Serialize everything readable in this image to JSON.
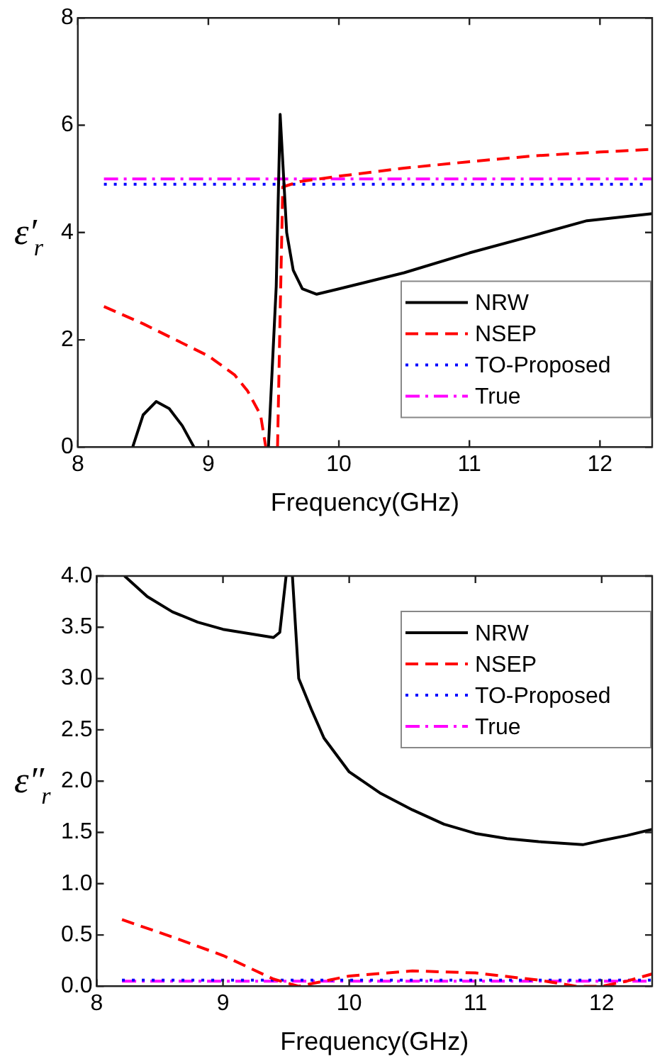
{
  "chart_data": [
    {
      "type": "line",
      "ylabel": "ε′$_{r}$",
      "xlabel": "Frequency(GHz)",
      "xlim": [
        8,
        12.4
      ],
      "xticks": [
        8,
        9,
        10,
        11,
        12
      ],
      "ylim": [
        0,
        8
      ],
      "yticks": [
        0,
        2,
        4,
        6,
        8
      ],
      "grid": false,
      "legend": "bottom right",
      "marker": "none",
      "series": [
        {
          "name": "NRW",
          "color": "#000000",
          "line_style": "solid",
          "x": [
            8.42,
            8.5,
            8.6,
            8.7,
            8.8,
            8.89,
            9.2,
            9.46,
            9.52,
            9.55,
            9.6,
            9.65,
            9.72,
            9.83,
            10,
            10.5,
            11,
            11.5,
            11.9,
            12.4
          ],
          "values": [
            0,
            0.6,
            0.85,
            0.72,
            0.4,
            0,
            null,
            0,
            3,
            6.2,
            4,
            3.3,
            2.95,
            2.85,
            2.95,
            3.25,
            3.62,
            3.95,
            4.22,
            4.35
          ]
        },
        {
          "name": "NSEP",
          "color": "#ff0000",
          "line_style": "dashed",
          "x": [
            8.2,
            8.5,
            9,
            9.2,
            9.3,
            9.4,
            9.44,
            9.5,
            9.53,
            9.55,
            9.57,
            9.7,
            10,
            10.5,
            11,
            11.5,
            12,
            12.4
          ],
          "values": [
            2.62,
            2.3,
            1.7,
            1.35,
            1.05,
            0.6,
            0,
            null,
            0,
            2.5,
            4.85,
            4.95,
            5.05,
            5.2,
            5.32,
            5.43,
            5.5,
            5.55
          ]
        },
        {
          "name": "TO-Proposed",
          "color": "#0000ff",
          "line_style": "dotted",
          "x": [
            8.2,
            12.35
          ],
          "values": [
            4.9,
            4.9
          ]
        },
        {
          "name": "True",
          "color": "#ff00ff",
          "line_style": "dashdot",
          "x": [
            8.2,
            12.4
          ],
          "values": [
            5,
            5
          ]
        }
      ]
    },
    {
      "type": "line",
      "ylabel": "ε″$_{r}$",
      "xlabel": "Frequency(GHz)",
      "xlim": [
        8,
        12.4
      ],
      "xticks": [
        8,
        9,
        10,
        11,
        12
      ],
      "ylim": [
        0,
        4
      ],
      "yticks": [
        {
          "value": 0,
          "label": "0.0"
        },
        {
          "value": 0.5,
          "label": "0.5"
        },
        {
          "value": 1,
          "label": "1.0"
        },
        {
          "value": 1.5,
          "label": "1.5"
        },
        {
          "value": 2,
          "label": "2.0"
        },
        {
          "value": 2.5,
          "label": "2.5"
        },
        {
          "value": 3,
          "label": "3.0"
        },
        {
          "value": 3.5,
          "label": "3.5"
        },
        {
          "value": 4,
          "label": "4.0"
        }
      ],
      "grid": false,
      "legend": "top right",
      "marker": "none",
      "series": [
        {
          "name": "NRW",
          "color": "#000000",
          "line_style": "solid",
          "x": [
            8.22,
            8.4,
            8.6,
            8.8,
            9,
            9.2,
            9.4,
            9.45,
            9.5,
            9.52,
            9.55,
            9.6,
            9.7,
            9.8,
            10,
            10.25,
            10.5,
            10.75,
            11,
            11.25,
            11.5,
            11.85,
            12,
            12.2,
            12.4
          ],
          "values": [
            4,
            3.8,
            3.65,
            3.55,
            3.48,
            3.44,
            3.4,
            3.45,
            4,
            null,
            4,
            3,
            2.7,
            2.42,
            2.09,
            1.88,
            1.72,
            1.58,
            1.49,
            1.44,
            1.41,
            1.38,
            1.42,
            1.47,
            1.53
          ]
        },
        {
          "name": "NSEP",
          "color": "#ff0000",
          "line_style": "dashed",
          "x": [
            8.2,
            8.6,
            9,
            9.4,
            9.6,
            10,
            10.5,
            11,
            11.5,
            11.8,
            12,
            12.2,
            12.4
          ],
          "values": [
            0.65,
            0.48,
            0.3,
            0.07,
            0,
            0.1,
            0.15,
            0.13,
            0.06,
            0,
            0,
            0.05,
            0.12
          ]
        },
        {
          "name": "TO-Proposed",
          "color": "#0000ff",
          "line_style": "dotted",
          "x": [
            8.2,
            12.4
          ],
          "values": [
            0.06,
            0.06
          ]
        },
        {
          "name": "True",
          "color": "#ff00ff",
          "line_style": "dashdot",
          "x": [
            8.2,
            12.4
          ],
          "values": [
            0.05,
            0.05
          ]
        }
      ]
    }
  ]
}
